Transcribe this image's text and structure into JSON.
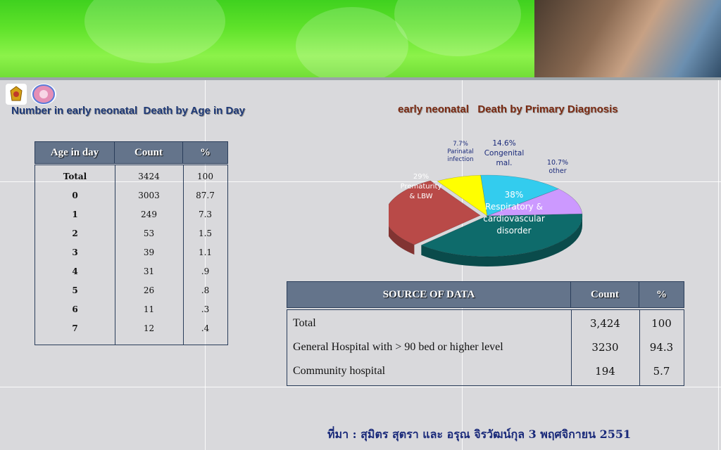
{
  "colors": {
    "header_fill": "#64748b",
    "title_left": "#1f3a78",
    "title_right": "#7a2a12",
    "pie_respiratory": "#0e6b6b",
    "pie_prematurity": "#b94a48",
    "pie_parinatal": "#ffff00",
    "pie_congenital": "#33ccee",
    "pie_other": "#cc99ff"
  },
  "titles": {
    "left": "Number in early neonatal  Death by Age in Day",
    "right": "early neonatal   Death by Primary Diagnosis"
  },
  "age_table": {
    "headers": [
      "Age in day",
      "Count",
      "%"
    ],
    "rows": [
      [
        "Total",
        "3424",
        "100"
      ],
      [
        "0",
        "3003",
        "87.7"
      ],
      [
        "1",
        "249",
        "7.3"
      ],
      [
        "2",
        "53",
        "1.5"
      ],
      [
        "3",
        "39",
        "1.1"
      ],
      [
        "4",
        "31",
        ".9"
      ],
      [
        "5",
        "26",
        ".8"
      ],
      [
        "6",
        "11",
        ".3"
      ],
      [
        "7",
        "12",
        ".4"
      ]
    ]
  },
  "pie": {
    "labels": {
      "parinatal": [
        "7.7%",
        "Parinatal",
        "infection"
      ],
      "congenital": [
        "14.6%",
        "Congenital",
        "mal."
      ],
      "other": [
        "10.7%",
        "other"
      ],
      "prematurity": [
        "29%",
        "Prematurity",
        "& LBW"
      ],
      "respiratory": [
        "38%",
        "Respiratory  &",
        "cardiovascular",
        "disorder"
      ]
    }
  },
  "chart_data": {
    "type": "pie",
    "title": "early neonatal   Death by Primary Diagnosis",
    "slices": [
      {
        "label": "Respiratory  & cardiovascular disorder",
        "value": 38
      },
      {
        "label": "Prematurity & LBW",
        "value": 29
      },
      {
        "label": "Parinatal infection",
        "value": 7.7
      },
      {
        "label": "Congenital mal.",
        "value": 14.6
      },
      {
        "label": "other",
        "value": 10.7
      }
    ]
  },
  "source_table": {
    "headers": [
      "SOURCE OF DATA",
      "Count",
      "%"
    ],
    "rows": [
      [
        "Total",
        "3,424",
        "100"
      ],
      [
        "General Hospital with > 90 bed or higher level",
        "3230",
        "94.3"
      ],
      [
        "Community hospital",
        "194",
        "5.7"
      ]
    ]
  },
  "source_note": "ที่มา : สุมิตร สุตรา และ อรุณ จิรวัฒน์กุล 3 พฤศจิกายน 2551"
}
